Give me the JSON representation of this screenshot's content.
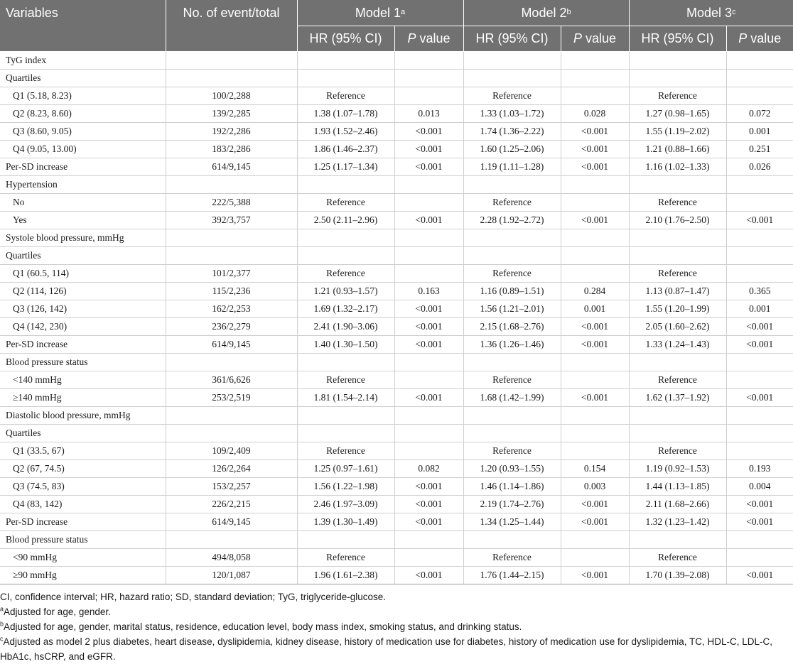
{
  "header": {
    "variables": "Variables",
    "events": "No. of event/total",
    "models": [
      {
        "label": "Model 1",
        "sup": "a"
      },
      {
        "label": "Model 2",
        "sup": "b"
      },
      {
        "label": "Model 3",
        "sup": "c"
      }
    ],
    "hr": "HR (95% CI)",
    "p_italic": "P",
    "p_rest": " value"
  },
  "rows": [
    {
      "label": "TyG index",
      "indent": false,
      "events": "",
      "m1hr": "",
      "m1p": "",
      "m2hr": "",
      "m2p": "",
      "m3hr": "",
      "m3p": ""
    },
    {
      "label": "Quartiles",
      "indent": false,
      "events": "",
      "m1hr": "",
      "m1p": "",
      "m2hr": "",
      "m2p": "",
      "m3hr": "",
      "m3p": ""
    },
    {
      "label": "Q1 (5.18, 8.23)",
      "indent": true,
      "events": "100/2,288",
      "m1hr": "Reference",
      "m1p": "",
      "m2hr": "Reference",
      "m2p": "",
      "m3hr": "Reference",
      "m3p": ""
    },
    {
      "label": "Q2 (8.23, 8.60)",
      "indent": true,
      "events": "139/2,285",
      "m1hr": "1.38 (1.07–1.78)",
      "m1p": "0.013",
      "m2hr": "1.33 (1.03–1.72)",
      "m2p": "0.028",
      "m3hr": "1.27 (0.98–1.65)",
      "m3p": "0.072"
    },
    {
      "label": "Q3 (8.60, 9.05)",
      "indent": true,
      "events": "192/2,286",
      "m1hr": "1.93 (1.52–2.46)",
      "m1p": "<0.001",
      "m2hr": "1.74 (1.36–2.22)",
      "m2p": "<0.001",
      "m3hr": "1.55 (1.19–2.02)",
      "m3p": "0.001"
    },
    {
      "label": "Q4 (9.05, 13.00)",
      "indent": true,
      "events": "183/2,286",
      "m1hr": "1.86 (1.46–2.37)",
      "m1p": "<0.001",
      "m2hr": "1.60 (1.25–2.06)",
      "m2p": "<0.001",
      "m3hr": "1.21 (0.88–1.66)",
      "m3p": "0.251"
    },
    {
      "label": "Per-SD increase",
      "indent": false,
      "events": "614/9,145",
      "m1hr": "1.25 (1.17–1.34)",
      "m1p": "<0.001",
      "m2hr": "1.19 (1.11–1.28)",
      "m2p": "<0.001",
      "m3hr": "1.16 (1.02–1.33)",
      "m3p": "0.026"
    },
    {
      "label": "Hypertension",
      "indent": false,
      "events": "",
      "m1hr": "",
      "m1p": "",
      "m2hr": "",
      "m2p": "",
      "m3hr": "",
      "m3p": ""
    },
    {
      "label": "No",
      "indent": true,
      "events": "222/5,388",
      "m1hr": "Reference",
      "m1p": "",
      "m2hr": "Reference",
      "m2p": "",
      "m3hr": "Reference",
      "m3p": ""
    },
    {
      "label": "Yes",
      "indent": true,
      "events": "392/3,757",
      "m1hr": "2.50 (2.11–2.96)",
      "m1p": "<0.001",
      "m2hr": "2.28 (1.92–2.72)",
      "m2p": "<0.001",
      "m3hr": "2.10 (1.76–2.50)",
      "m3p": "<0.001"
    },
    {
      "label": "Systole blood pressure, mmHg",
      "indent": false,
      "events": "",
      "m1hr": "",
      "m1p": "",
      "m2hr": "",
      "m2p": "",
      "m3hr": "",
      "m3p": ""
    },
    {
      "label": "Quartiles",
      "indent": false,
      "events": "",
      "m1hr": "",
      "m1p": "",
      "m2hr": "",
      "m2p": "",
      "m3hr": "",
      "m3p": ""
    },
    {
      "label": "Q1 (60.5, 114)",
      "indent": true,
      "events": "101/2,377",
      "m1hr": "Reference",
      "m1p": "",
      "m2hr": "Reference",
      "m2p": "",
      "m3hr": "Reference",
      "m3p": ""
    },
    {
      "label": "Q2 (114, 126)",
      "indent": true,
      "events": "115/2,236",
      "m1hr": "1.21 (0.93–1.57)",
      "m1p": "0.163",
      "m2hr": "1.16 (0.89–1.51)",
      "m2p": "0.284",
      "m3hr": "1.13 (0.87–1.47)",
      "m3p": "0.365"
    },
    {
      "label": "Q3 (126, 142)",
      "indent": true,
      "events": "162/2,253",
      "m1hr": "1.69 (1.32–2.17)",
      "m1p": "<0.001",
      "m2hr": "1.56 (1.21–2.01)",
      "m2p": "0.001",
      "m3hr": "1.55 (1.20–1.99)",
      "m3p": "0.001"
    },
    {
      "label": "Q4 (142, 230)",
      "indent": true,
      "events": "236/2,279",
      "m1hr": "2.41 (1.90–3.06)",
      "m1p": "<0.001",
      "m2hr": "2.15 (1.68–2.76)",
      "m2p": "<0.001",
      "m3hr": "2.05 (1.60–2.62)",
      "m3p": "<0.001"
    },
    {
      "label": "Per-SD increase",
      "indent": false,
      "events": "614/9,145",
      "m1hr": "1.40 (1.30–1.50)",
      "m1p": "<0.001",
      "m2hr": "1.36 (1.26–1.46)",
      "m2p": "<0.001",
      "m3hr": "1.33 (1.24–1.43)",
      "m3p": "<0.001"
    },
    {
      "label": "Blood pressure status",
      "indent": false,
      "events": "",
      "m1hr": "",
      "m1p": "",
      "m2hr": "",
      "m2p": "",
      "m3hr": "",
      "m3p": ""
    },
    {
      "label": "<140 mmHg",
      "indent": true,
      "events": "361/6,626",
      "m1hr": "Reference",
      "m1p": "",
      "m2hr": "Reference",
      "m2p": "",
      "m3hr": "Reference",
      "m3p": ""
    },
    {
      "label": "≥140 mmHg",
      "indent": true,
      "events": "253/2,519",
      "m1hr": "1.81 (1.54–2.14)",
      "m1p": "<0.001",
      "m2hr": "1.68 (1.42–1.99)",
      "m2p": "<0.001",
      "m3hr": "1.62 (1.37–1.92)",
      "m3p": "<0.001"
    },
    {
      "label": "Diastolic blood pressure, mmHg",
      "indent": false,
      "events": "",
      "m1hr": "",
      "m1p": "",
      "m2hr": "",
      "m2p": "",
      "m3hr": "",
      "m3p": ""
    },
    {
      "label": "Quartiles",
      "indent": false,
      "events": "",
      "m1hr": "",
      "m1p": "",
      "m2hr": "",
      "m2p": "",
      "m3hr": "",
      "m3p": ""
    },
    {
      "label": "Q1 (33.5, 67)",
      "indent": true,
      "events": "109/2,409",
      "m1hr": "Reference",
      "m1p": "",
      "m2hr": "Reference",
      "m2p": "",
      "m3hr": "Reference",
      "m3p": ""
    },
    {
      "label": "Q2 (67, 74.5)",
      "indent": true,
      "events": "126/2,264",
      "m1hr": "1.25 (0.97–1.61)",
      "m1p": "0.082",
      "m2hr": "1.20 (0.93–1.55)",
      "m2p": "0.154",
      "m3hr": "1.19 (0.92–1.53)",
      "m3p": "0.193"
    },
    {
      "label": "Q3 (74.5, 83)",
      "indent": true,
      "events": "153/2,257",
      "m1hr": "1.56 (1.22–1.98)",
      "m1p": "<0.001",
      "m2hr": "1.46 (1.14–1.86)",
      "m2p": "0.003",
      "m3hr": "1.44 (1.13–1.85)",
      "m3p": "0.004"
    },
    {
      "label": "Q4 (83, 142)",
      "indent": true,
      "events": "226/2,215",
      "m1hr": "2.46 (1.97–3.09)",
      "m1p": "<0.001",
      "m2hr": "2.19 (1.74–2.76)",
      "m2p": "<0.001",
      "m3hr": "2.11 (1.68–2.66)",
      "m3p": "<0.001"
    },
    {
      "label": "Per-SD increase",
      "indent": false,
      "events": "614/9,145",
      "m1hr": "1.39 (1.30–1.49)",
      "m1p": "<0.001",
      "m2hr": "1.34 (1.25–1.44)",
      "m2p": "<0.001",
      "m3hr": "1.32 (1.23–1.42)",
      "m3p": "<0.001"
    },
    {
      "label": "Blood pressure status",
      "indent": false,
      "events": "",
      "m1hr": "",
      "m1p": "",
      "m2hr": "",
      "m2p": "",
      "m3hr": "",
      "m3p": ""
    },
    {
      "label": "<90 mmHg",
      "indent": true,
      "events": "494/8,058",
      "m1hr": "Reference",
      "m1p": "",
      "m2hr": "Reference",
      "m2p": "",
      "m3hr": "Reference",
      "m3p": ""
    },
    {
      "label": "≥90 mmHg",
      "indent": true,
      "events": "120/1,087",
      "m1hr": "1.96 (1.61–2.38)",
      "m1p": "<0.001",
      "m2hr": "1.76 (1.44–2.15)",
      "m2p": "<0.001",
      "m3hr": "1.70 (1.39–2.08)",
      "m3p": "<0.001"
    }
  ],
  "footnotes": {
    "abbrev": "CI, confidence interval; HR, hazard ratio; SD, standard deviation; TyG, triglyceride-glucose.",
    "notes": [
      {
        "sup": "a",
        "text": "Adjusted for age, gender."
      },
      {
        "sup": "b",
        "text": "Adjusted for age, gender, marital status, residence, education level, body mass index, smoking status, and drinking status."
      },
      {
        "sup": "c",
        "text": "Adjusted as model 2 plus diabetes, heart disease, dyslipidemia, kidney disease, history of medication use for diabetes, history of medication use for dyslipidemia, TC, HDL-C, LDL-C, HbA1c, hsCRP, and eGFR."
      }
    ]
  }
}
